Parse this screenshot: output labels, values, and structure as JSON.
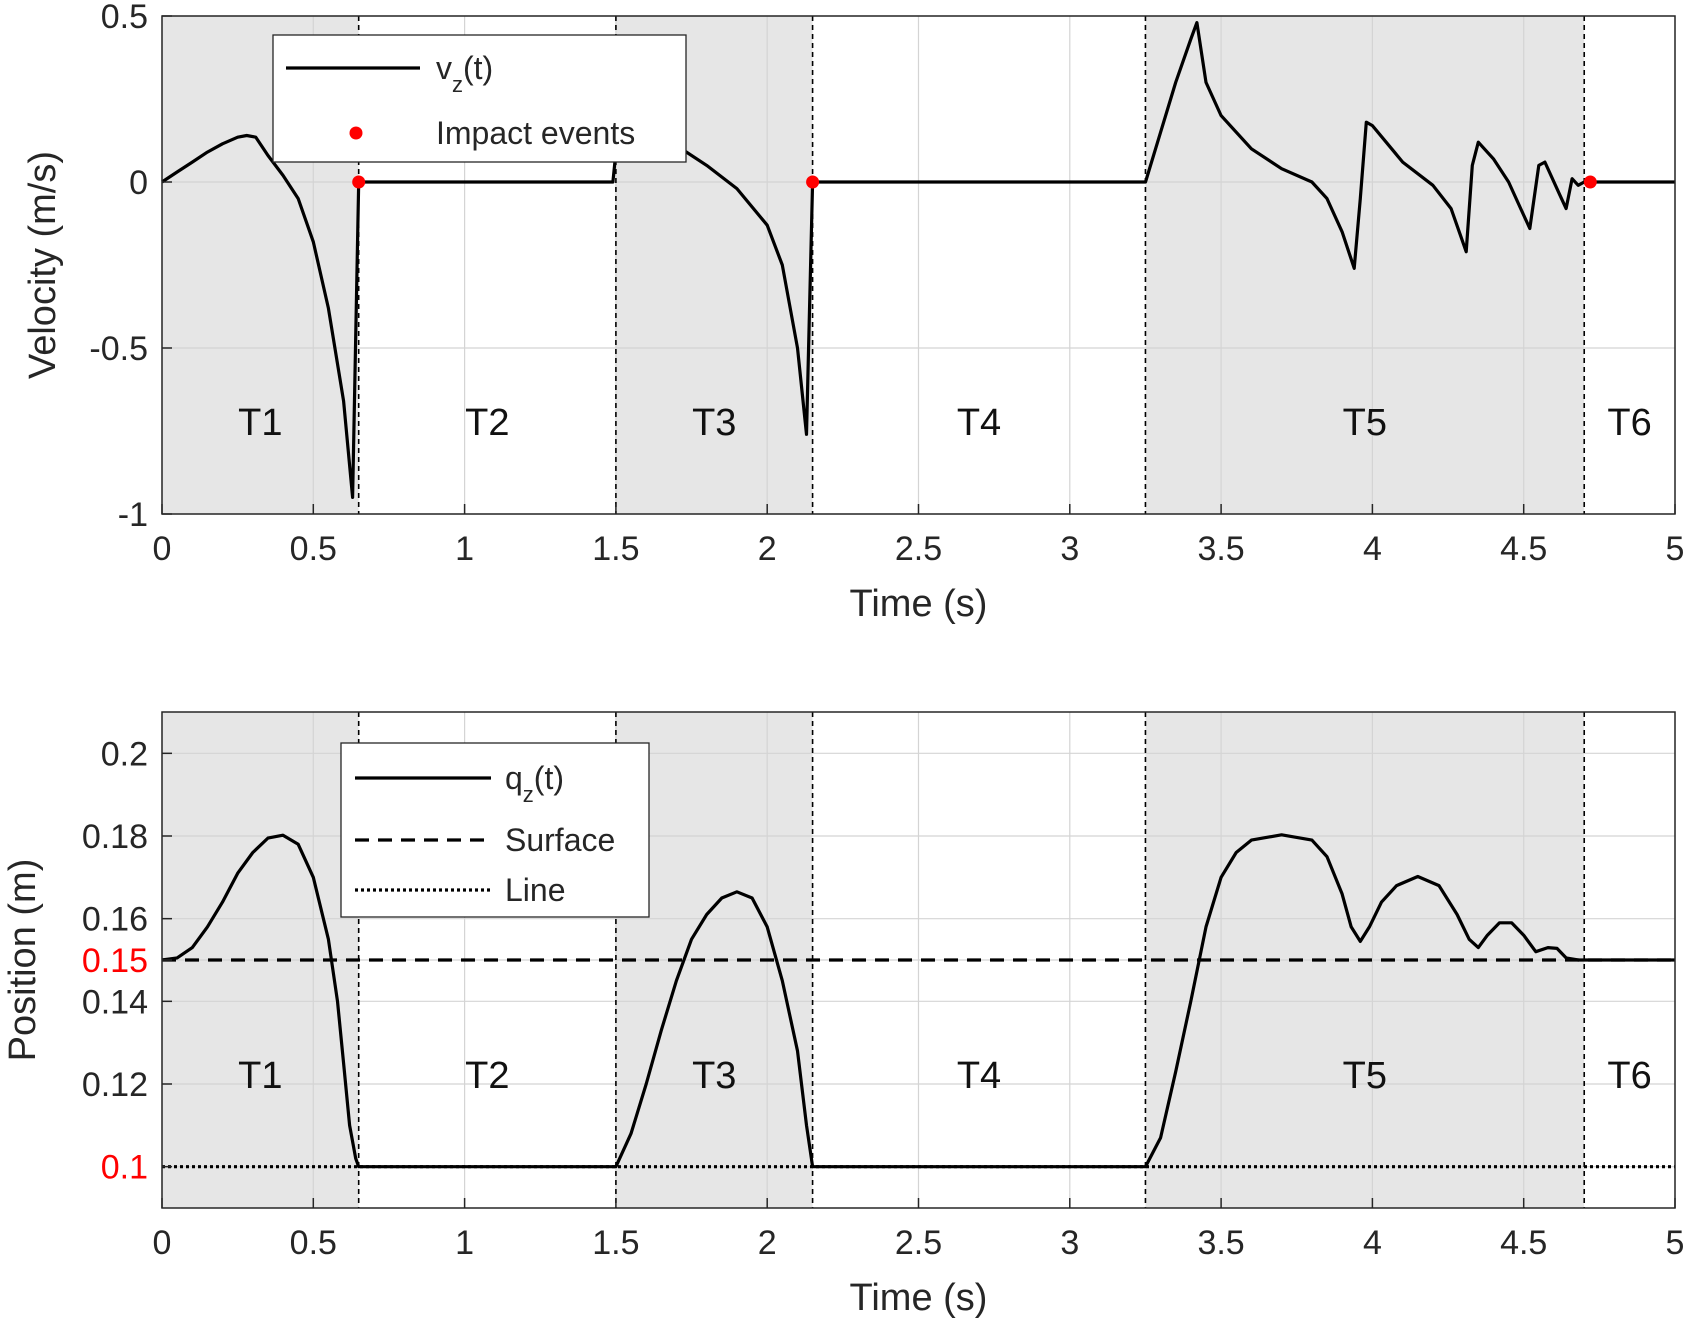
{
  "chart_data": [
    {
      "type": "line",
      "xlabel": "Time (s)",
      "ylabel": "Velocity (m/s)",
      "xlim": [
        0,
        5
      ],
      "ylim": [
        -1,
        0.5
      ],
      "xticks": [
        0,
        0.5,
        1,
        1.5,
        2,
        2.5,
        3,
        3.5,
        4,
        4.5,
        5
      ],
      "xtick_labels": [
        "0",
        "0.5",
        "1",
        "1.5",
        "2",
        "2.5",
        "3",
        "3.5",
        "4",
        "4.5",
        "5"
      ],
      "yticks": [
        -1,
        -0.5,
        0,
        0.5
      ],
      "ytick_labels": [
        "-1",
        "-0.5",
        "0",
        "0.5"
      ],
      "grid": true,
      "legend_position": "top-left",
      "series": [
        {
          "name": "v_z(t)",
          "color": "#000000",
          "style": "solid",
          "points": [
            [
              0,
              0
            ],
            [
              0.05,
              0.03
            ],
            [
              0.1,
              0.06
            ],
            [
              0.15,
              0.09
            ],
            [
              0.2,
              0.115
            ],
            [
              0.25,
              0.135
            ],
            [
              0.28,
              0.14
            ],
            [
              0.31,
              0.135
            ],
            [
              0.35,
              0.08
            ],
            [
              0.4,
              0.02
            ],
            [
              0.45,
              -0.05
            ],
            [
              0.5,
              -0.18
            ],
            [
              0.55,
              -0.38
            ],
            [
              0.6,
              -0.66
            ],
            [
              0.63,
              -0.95
            ],
            [
              0.65,
              0
            ],
            [
              1.49,
              0
            ],
            [
              1.51,
              0.18
            ],
            [
              1.55,
              0.19
            ],
            [
              1.62,
              0.16
            ],
            [
              1.7,
              0.11
            ],
            [
              1.8,
              0.05
            ],
            [
              1.9,
              -0.02
            ],
            [
              2,
              -0.13
            ],
            [
              2.05,
              -0.25
            ],
            [
              2.1,
              -0.5
            ],
            [
              2.13,
              -0.76
            ],
            [
              2.15,
              0
            ],
            [
              3.25,
              0
            ],
            [
              3.3,
              0.15
            ],
            [
              3.35,
              0.3
            ],
            [
              3.4,
              0.43
            ],
            [
              3.42,
              0.48
            ],
            [
              3.45,
              0.3
            ],
            [
              3.5,
              0.2
            ],
            [
              3.6,
              0.1
            ],
            [
              3.7,
              0.04
            ],
            [
              3.8,
              0
            ],
            [
              3.85,
              -0.05
            ],
            [
              3.9,
              -0.15
            ],
            [
              3.94,
              -0.26
            ],
            [
              3.96,
              -0.05
            ],
            [
              3.98,
              0.18
            ],
            [
              4.0,
              0.17
            ],
            [
              4.1,
              0.06
            ],
            [
              4.2,
              -0.01
            ],
            [
              4.26,
              -0.08
            ],
            [
              4.31,
              -0.21
            ],
            [
              4.33,
              0.05
            ],
            [
              4.35,
              0.12
            ],
            [
              4.4,
              0.07
            ],
            [
              4.45,
              0
            ],
            [
              4.49,
              -0.08
            ],
            [
              4.52,
              -0.14
            ],
            [
              4.55,
              0.05
            ],
            [
              4.57,
              0.06
            ],
            [
              4.62,
              -0.04
            ],
            [
              4.64,
              -0.08
            ],
            [
              4.66,
              0.01
            ],
            [
              4.68,
              -0.01
            ],
            [
              4.7,
              0
            ],
            [
              5,
              0
            ]
          ]
        },
        {
          "name": "Impact events",
          "color": "#ff0000",
          "style": "marker",
          "points": [
            [
              0.65,
              0
            ],
            [
              2.15,
              0
            ],
            [
              4.72,
              0
            ]
          ]
        }
      ],
      "phases": [
        {
          "label": "T1",
          "x0": 0,
          "x1": 0.65,
          "shaded": true
        },
        {
          "label": "T2",
          "x0": 0.65,
          "x1": 1.5,
          "shaded": false
        },
        {
          "label": "T3",
          "x0": 1.5,
          "x1": 2.15,
          "shaded": true
        },
        {
          "label": "T4",
          "x0": 2.15,
          "x1": 3.25,
          "shaded": false
        },
        {
          "label": "T5",
          "x0": 3.25,
          "x1": 4.7,
          "shaded": true
        },
        {
          "label": "T6",
          "x0": 4.7,
          "x1": 5,
          "shaded": false
        }
      ],
      "legend": [
        {
          "main": "v",
          "sub": "z",
          "rest": "(t)",
          "style": "solid"
        },
        {
          "main": "Impact events",
          "sub": "",
          "rest": "",
          "style": "marker"
        }
      ]
    },
    {
      "type": "line",
      "xlabel": "Time (s)",
      "ylabel": "Position (m)",
      "xlim": [
        0,
        5
      ],
      "ylim": [
        0.09,
        0.21
      ],
      "xticks": [
        0,
        0.5,
        1,
        1.5,
        2,
        2.5,
        3,
        3.5,
        4,
        4.5,
        5
      ],
      "xtick_labels": [
        "0",
        "0.5",
        "1",
        "1.5",
        "2",
        "2.5",
        "3",
        "3.5",
        "4",
        "4.5",
        "5"
      ],
      "yticks": [
        0.1,
        0.12,
        0.14,
        0.15,
        0.16,
        0.18,
        0.2
      ],
      "ytick_labels": [
        "0.1",
        "0.12",
        "0.14",
        "0.15",
        "0.16",
        "0.18",
        "0.2"
      ],
      "highlight_ticks": [
        0.1,
        0.15
      ],
      "highlight_color": "#ff0000",
      "grid": true,
      "legend_position": "top-left",
      "series": [
        {
          "name": "q_z(t)",
          "color": "#000000",
          "style": "solid",
          "points": [
            [
              0,
              0.15
            ],
            [
              0.05,
              0.1505
            ],
            [
              0.1,
              0.153
            ],
            [
              0.15,
              0.158
            ],
            [
              0.2,
              0.164
            ],
            [
              0.25,
              0.171
            ],
            [
              0.3,
              0.176
            ],
            [
              0.35,
              0.1795
            ],
            [
              0.4,
              0.1802
            ],
            [
              0.45,
              0.178
            ],
            [
              0.5,
              0.17
            ],
            [
              0.55,
              0.155
            ],
            [
              0.58,
              0.14
            ],
            [
              0.6,
              0.125
            ],
            [
              0.62,
              0.11
            ],
            [
              0.64,
              0.102
            ],
            [
              0.65,
              0.1
            ],
            [
              1.5,
              0.1
            ],
            [
              1.55,
              0.108
            ],
            [
              1.6,
              0.12
            ],
            [
              1.65,
              0.133
            ],
            [
              1.7,
              0.145
            ],
            [
              1.75,
              0.155
            ],
            [
              1.8,
              0.161
            ],
            [
              1.85,
              0.165
            ],
            [
              1.9,
              0.1665
            ],
            [
              1.95,
              0.165
            ],
            [
              2.0,
              0.158
            ],
            [
              2.05,
              0.145
            ],
            [
              2.1,
              0.128
            ],
            [
              2.13,
              0.11
            ],
            [
              2.15,
              0.1
            ],
            [
              3.25,
              0.1
            ],
            [
              3.3,
              0.107
            ],
            [
              3.35,
              0.123
            ],
            [
              3.4,
              0.14
            ],
            [
              3.45,
              0.158
            ],
            [
              3.5,
              0.17
            ],
            [
              3.55,
              0.176
            ],
            [
              3.6,
              0.179
            ],
            [
              3.7,
              0.1803
            ],
            [
              3.8,
              0.179
            ],
            [
              3.85,
              0.175
            ],
            [
              3.9,
              0.166
            ],
            [
              3.93,
              0.158
            ],
            [
              3.96,
              0.1545
            ],
            [
              3.99,
              0.158
            ],
            [
              4.03,
              0.164
            ],
            [
              4.08,
              0.168
            ],
            [
              4.15,
              0.1702
            ],
            [
              4.22,
              0.168
            ],
            [
              4.28,
              0.161
            ],
            [
              4.32,
              0.155
            ],
            [
              4.35,
              0.153
            ],
            [
              4.38,
              0.156
            ],
            [
              4.42,
              0.159
            ],
            [
              4.46,
              0.159
            ],
            [
              4.5,
              0.156
            ],
            [
              4.54,
              0.152
            ],
            [
              4.58,
              0.153
            ],
            [
              4.61,
              0.1528
            ],
            [
              4.64,
              0.1505
            ],
            [
              4.68,
              0.15
            ],
            [
              5,
              0.15
            ]
          ]
        },
        {
          "name": "Surface",
          "color": "#000000",
          "style": "dashed",
          "points": [
            [
              0,
              0.15
            ],
            [
              5,
              0.15
            ]
          ]
        },
        {
          "name": "Line",
          "color": "#000000",
          "style": "dotted",
          "points": [
            [
              0,
              0.1
            ],
            [
              5,
              0.1
            ]
          ]
        }
      ],
      "phases": [
        {
          "label": "T1",
          "x0": 0,
          "x1": 0.65,
          "shaded": true
        },
        {
          "label": "T2",
          "x0": 0.65,
          "x1": 1.5,
          "shaded": false
        },
        {
          "label": "T3",
          "x0": 1.5,
          "x1": 2.15,
          "shaded": true
        },
        {
          "label": "T4",
          "x0": 2.15,
          "x1": 3.25,
          "shaded": false
        },
        {
          "label": "T5",
          "x0": 3.25,
          "x1": 4.7,
          "shaded": true
        },
        {
          "label": "T6",
          "x0": 4.7,
          "x1": 5,
          "shaded": false
        }
      ],
      "legend": [
        {
          "main": "q",
          "sub": "z",
          "rest": "(t)",
          "style": "solid"
        },
        {
          "main": "Surface",
          "sub": "",
          "rest": "",
          "style": "dashed"
        },
        {
          "main": "Line",
          "sub": "",
          "rest": "",
          "style": "dotted"
        }
      ]
    }
  ]
}
